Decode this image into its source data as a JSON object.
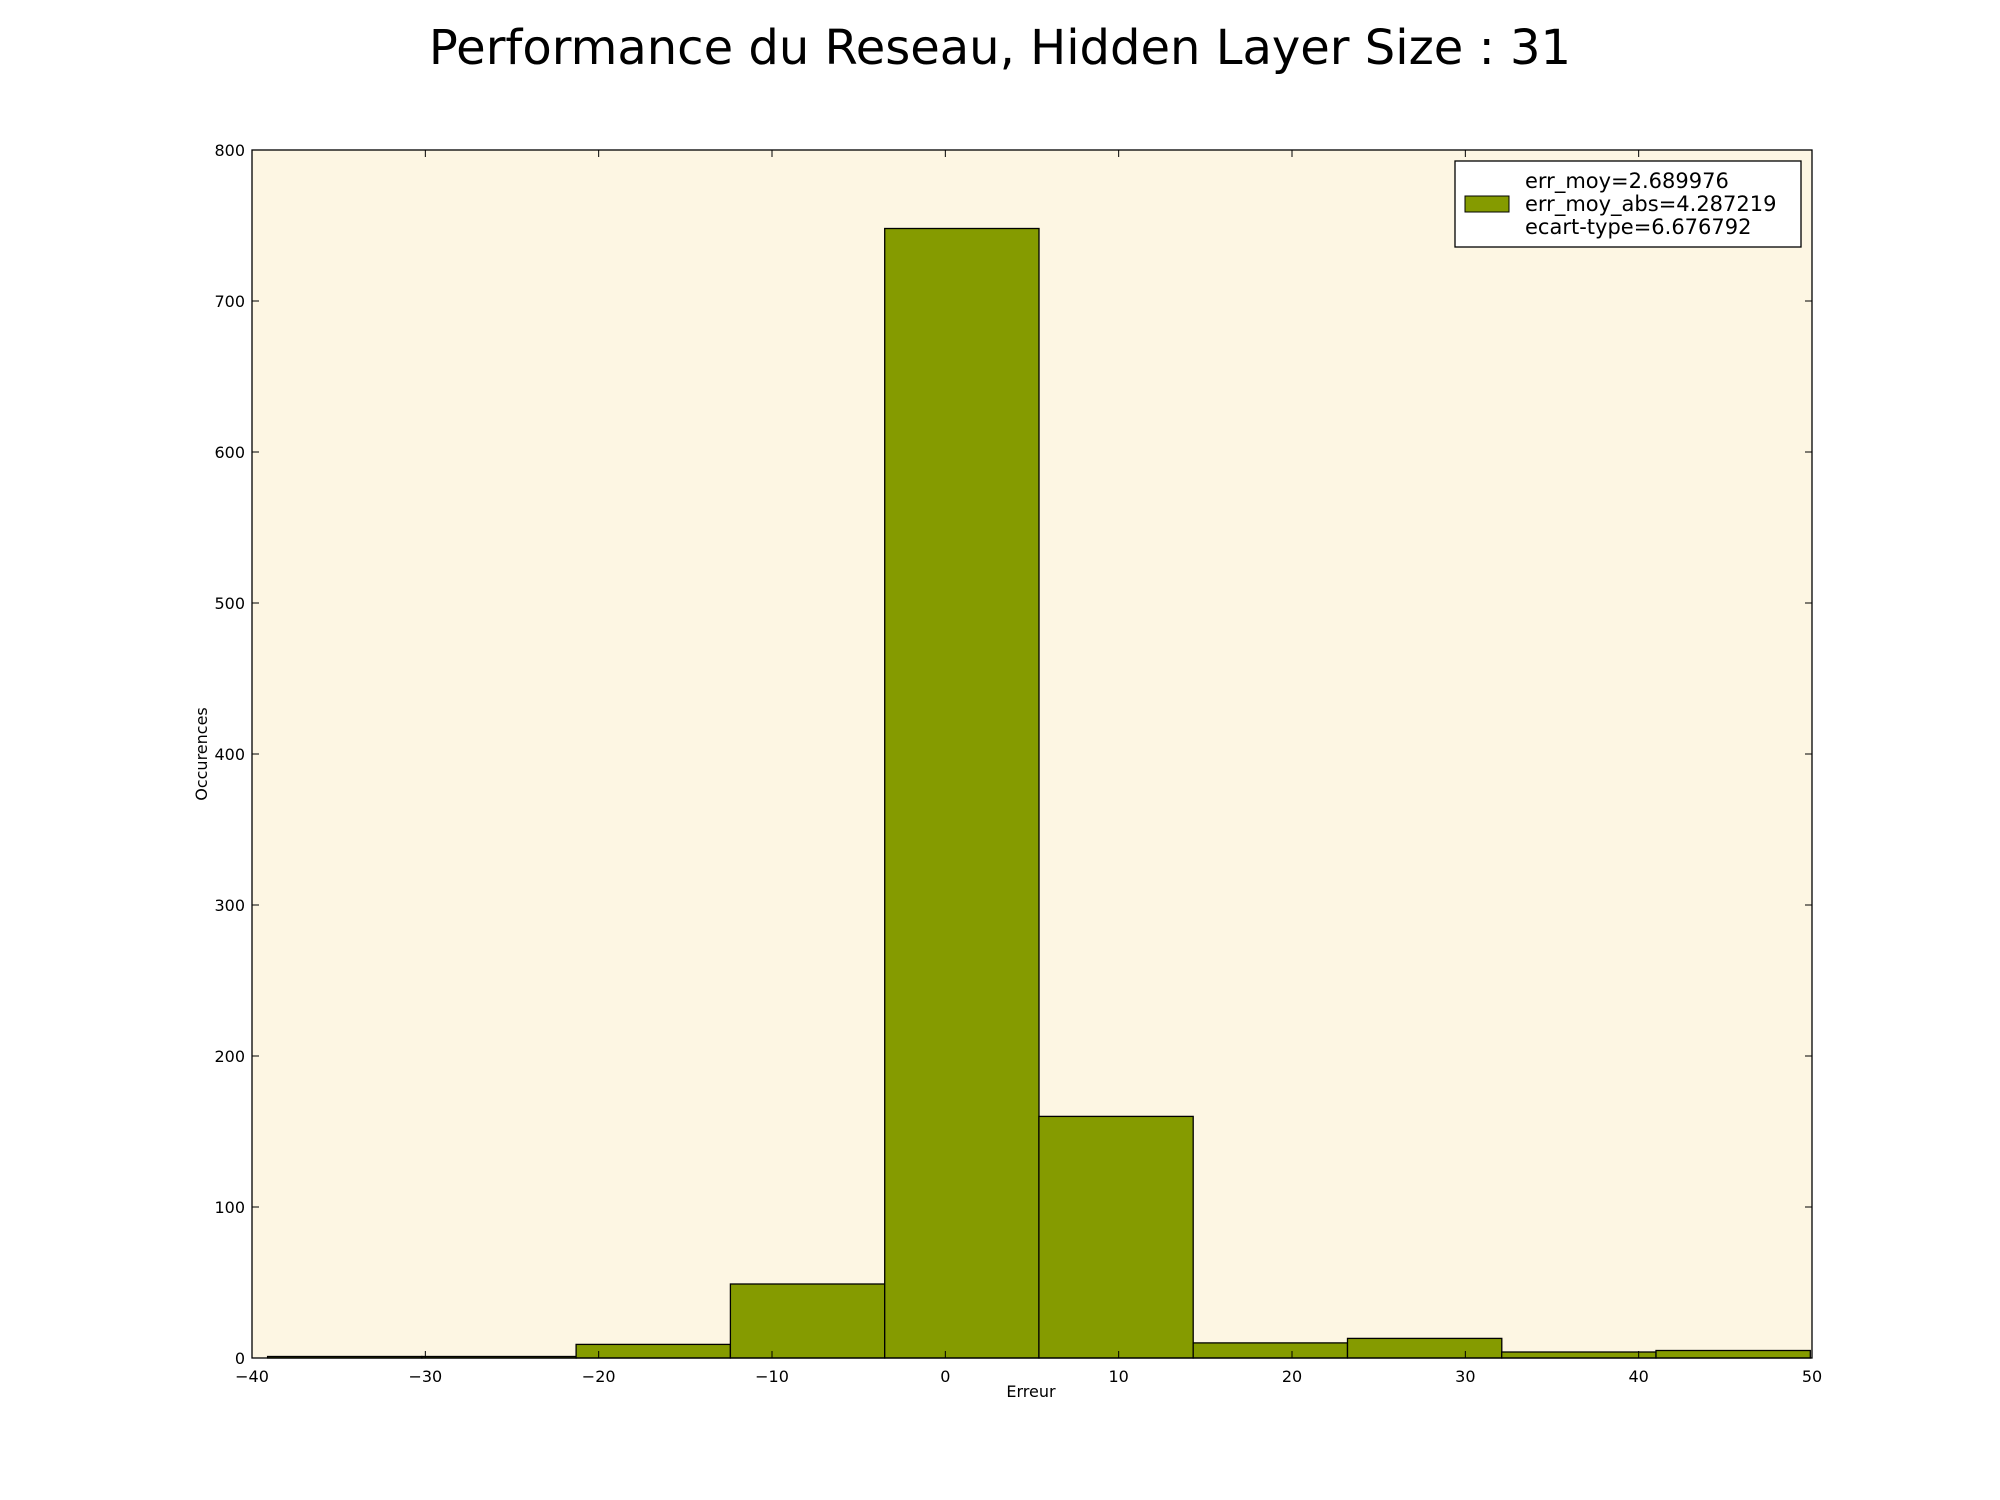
{
  "chart_data": {
    "type": "bar",
    "title": "Performance du Reseau, Hidden Layer Size : 31",
    "xlabel": "Erreur",
    "ylabel": "Occurences",
    "xlim": [
      -40,
      50
    ],
    "ylim": [
      0,
      800
    ],
    "xticks": [
      -40,
      -30,
      -20,
      -10,
      0,
      10,
      20,
      30,
      40,
      50
    ],
    "xtick_labels": [
      "−40",
      "−30",
      "−20",
      "−10",
      "0",
      "10",
      "20",
      "30",
      "40",
      "50"
    ],
    "yticks": [
      0,
      100,
      200,
      300,
      400,
      500,
      600,
      700,
      800
    ],
    "ytick_labels": [
      "0",
      "100",
      "200",
      "300",
      "400",
      "500",
      "600",
      "700",
      "800"
    ],
    "bins": [
      {
        "x0": -39.1,
        "x1": -30.2,
        "value": 1
      },
      {
        "x0": -30.2,
        "x1": -21.3,
        "value": 1
      },
      {
        "x0": -21.3,
        "x1": -12.4,
        "value": 9
      },
      {
        "x0": -12.4,
        "x1": -3.5,
        "value": 49
      },
      {
        "x0": -3.5,
        "x1": 5.4,
        "value": 748
      },
      {
        "x0": 5.4,
        "x1": 14.3,
        "value": 160
      },
      {
        "x0": 14.3,
        "x1": 23.2,
        "value": 10
      },
      {
        "x0": 23.2,
        "x1": 32.1,
        "value": 13
      },
      {
        "x0": 32.1,
        "x1": 41.0,
        "value": 4
      },
      {
        "x0": 41.0,
        "x1": 49.9,
        "value": 5
      }
    ],
    "bar_color": "#859b00",
    "plot_background": "#fdf6e3",
    "grid": false,
    "legend": {
      "placement": "top-right",
      "lines": [
        "err_moy=2.689976",
        "err_moy_abs=4.287219",
        "ecart-type=6.676792"
      ]
    }
  }
}
